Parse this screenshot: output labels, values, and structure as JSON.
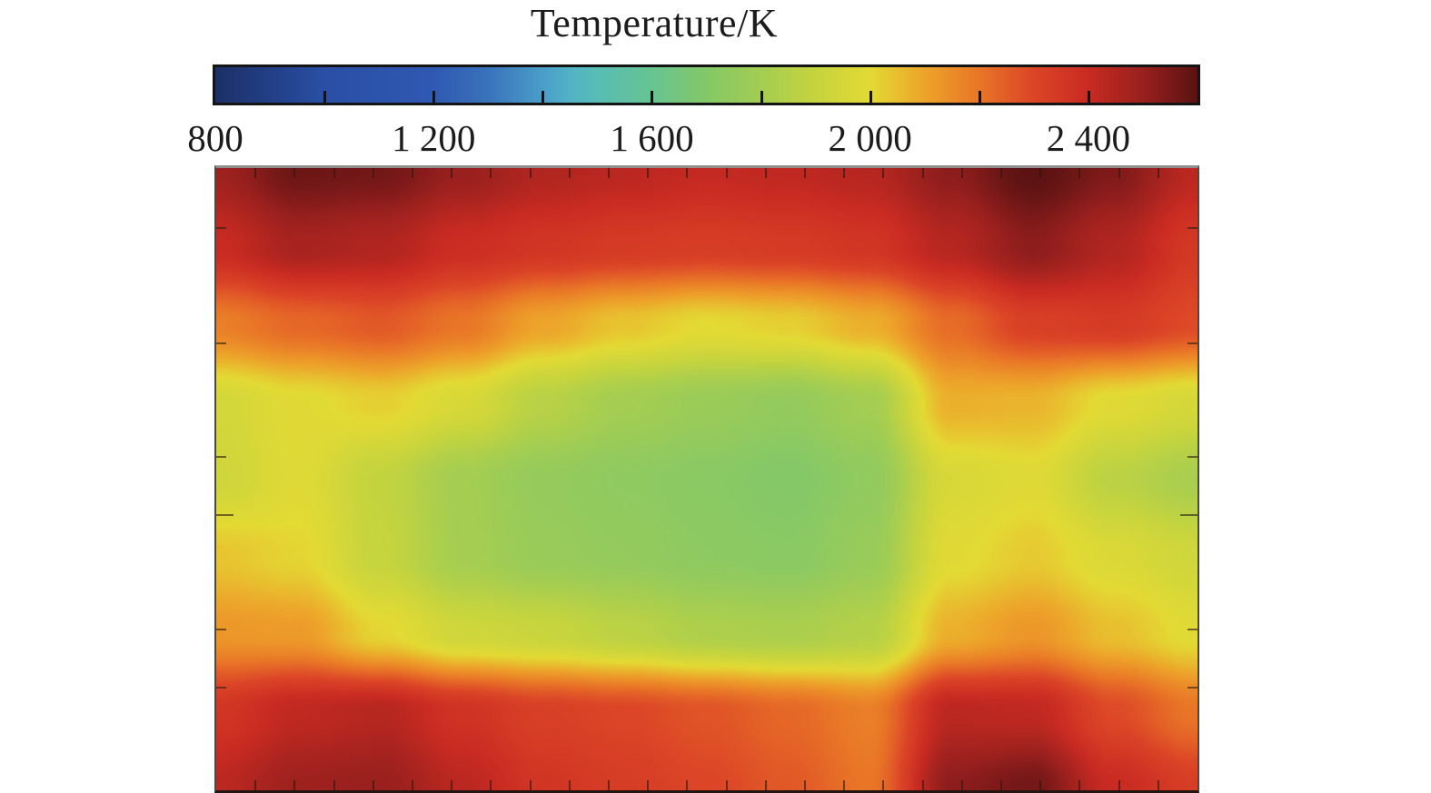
{
  "chart_data": {
    "type": "heatmap",
    "title": "Temperature/K",
    "colorbar": {
      "min": 800,
      "max": 2600,
      "unit": "K",
      "orientation": "horizontal",
      "tick_values": [
        1000,
        1200,
        1400,
        1600,
        1800,
        2000,
        2200,
        2400
      ],
      "labels": [
        {
          "value": 800,
          "text": "800"
        },
        {
          "value": 1200,
          "text": "1 200"
        },
        {
          "value": 1600,
          "text": "1 600"
        },
        {
          "value": 2000,
          "text": "2 000"
        },
        {
          "value": 2400,
          "text": "2 400"
        }
      ]
    },
    "colormap_stops": [
      [
        800,
        "#1b3067"
      ],
      [
        1000,
        "#2a4fa5"
      ],
      [
        1200,
        "#3059b3"
      ],
      [
        1300,
        "#3a73bb"
      ],
      [
        1400,
        "#4a9ec9"
      ],
      [
        1450,
        "#52b2c6"
      ],
      [
        1500,
        "#58bdb4"
      ],
      [
        1600,
        "#67c492"
      ],
      [
        1700,
        "#84c868"
      ],
      [
        1800,
        "#a4cd52"
      ],
      [
        1900,
        "#c6d43e"
      ],
      [
        2000,
        "#e3da34"
      ],
      [
        2100,
        "#eda42a"
      ],
      [
        2200,
        "#e97627"
      ],
      [
        2300,
        "#dc4527"
      ],
      [
        2400,
        "#c92b22"
      ],
      [
        2500,
        "#99201e"
      ],
      [
        2600,
        "#5a1213"
      ]
    ],
    "grid": {
      "cols": 13,
      "rows": 9,
      "value_unit": "K",
      "temperatures": [
        [
          2490,
          2570,
          2560,
          2500,
          2450,
          2430,
          2410,
          2420,
          2440,
          2520,
          2600,
          2540,
          2430
        ],
        [
          2400,
          2470,
          2450,
          2390,
          2360,
          2340,
          2330,
          2340,
          2360,
          2440,
          2520,
          2450,
          2350
        ],
        [
          2180,
          2230,
          2260,
          2200,
          2100,
          2040,
          2000,
          2020,
          2080,
          2220,
          2320,
          2340,
          2290
        ],
        [
          1945,
          1990,
          2020,
          1960,
          1860,
          1800,
          1770,
          1750,
          1800,
          2080,
          2070,
          1990,
          1950
        ],
        [
          1930,
          1985,
          1890,
          1800,
          1755,
          1735,
          1720,
          1700,
          1740,
          1960,
          1985,
          1870,
          1815
        ],
        [
          2040,
          2010,
          1900,
          1805,
          1765,
          1750,
          1730,
          1720,
          1765,
          1990,
          2030,
          1970,
          1930
        ],
        [
          2130,
          2120,
          2010,
          1930,
          1910,
          1870,
          1830,
          1820,
          1850,
          2080,
          2130,
          2050,
          1990
        ],
        [
          2360,
          2420,
          2440,
          2370,
          2320,
          2300,
          2270,
          2230,
          2180,
          2430,
          2420,
          2290,
          2200
        ],
        [
          2430,
          2490,
          2500,
          2430,
          2360,
          2330,
          2300,
          2260,
          2200,
          2520,
          2560,
          2400,
          2330
        ]
      ]
    },
    "plot_ticks": {
      "top_bottom_fractions": [
        0.04,
        0.08,
        0.12,
        0.16,
        0.2,
        0.24,
        0.28,
        0.32,
        0.36,
        0.4,
        0.44,
        0.48,
        0.52,
        0.56,
        0.6,
        0.64,
        0.68,
        0.72,
        0.76,
        0.8,
        0.84,
        0.88,
        0.92,
        0.96
      ],
      "side_ticks": [
        {
          "fraction": 0.096,
          "major": false
        },
        {
          "fraction": 0.282,
          "major": false
        },
        {
          "fraction": 0.464,
          "major": false
        },
        {
          "fraction": 0.557,
          "major": true
        },
        {
          "fraction": 0.741,
          "major": false
        },
        {
          "fraction": 0.835,
          "major": false
        }
      ]
    }
  }
}
